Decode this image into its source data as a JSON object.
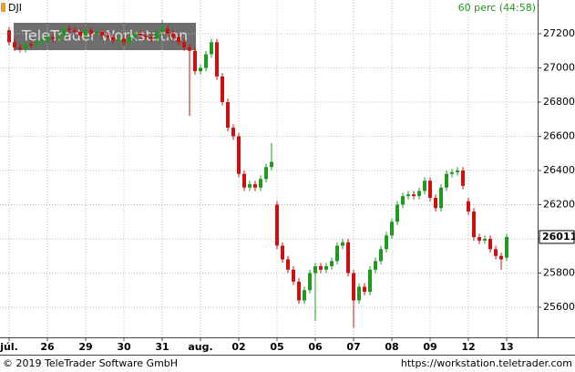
{
  "chart_data": {
    "type": "candlestick",
    "symbol": "DJI",
    "interval": "60 perc (44:58)",
    "watermark": "TeleTrader Workstation",
    "footer_left": "© 2019 TeleTrader Software GmbH",
    "footer_right": "https://workstation.teletrader.com",
    "categories": [
      "júl.",
      null,
      null,
      null,
      null,
      null,
      null,
      "26",
      null,
      null,
      null,
      null,
      null,
      null,
      "29",
      null,
      null,
      null,
      null,
      null,
      null,
      "30",
      null,
      null,
      null,
      null,
      null,
      null,
      "31",
      null,
      null,
      null,
      null,
      null,
      null,
      "aug.",
      null,
      null,
      null,
      null,
      null,
      null,
      "02",
      null,
      null,
      null,
      null,
      null,
      null,
      "05",
      null,
      null,
      null,
      null,
      null,
      null,
      "06",
      null,
      null,
      null,
      null,
      null,
      null,
      "07",
      null,
      null,
      null,
      null,
      null,
      null,
      "08",
      null,
      null,
      null,
      null,
      null,
      null,
      "09",
      null,
      null,
      null,
      null,
      null,
      null,
      "12",
      null,
      null,
      null,
      null,
      null,
      null,
      "13"
    ],
    "open": [
      27220,
      27150,
      27120,
      27110,
      27140,
      27130,
      27150,
      27160,
      27180,
      27170,
      27190,
      27230,
      27220,
      27210,
      27190,
      27220,
      27200,
      27210,
      27190,
      27180,
      27160,
      27170,
      27150,
      27180,
      27200,
      27190,
      27180,
      27170,
      27210,
      27230,
      27200,
      27180,
      27150,
      27120,
      27100,
      26980,
      27000,
      27080,
      27150,
      26950,
      26800,
      26650,
      26600,
      26380,
      26300,
      26320,
      26300,
      26350,
      26420,
      26200,
      25960,
      25880,
      25820,
      25750,
      25640,
      25700,
      25800,
      25840,
      25820,
      25840,
      25870,
      25960,
      25980,
      25800,
      25640,
      25720,
      25690,
      25820,
      25870,
      25940,
      26020,
      26100,
      26200,
      26250,
      26260,
      26250,
      26280,
      26340,
      26240,
      26180,
      26300,
      26380,
      26390,
      26400,
      26220,
      26160,
      26010,
      25990,
      26000,
      25940,
      25900,
      25890
    ],
    "high": [
      27240,
      27170,
      27140,
      27160,
      27160,
      27170,
      27180,
      27200,
      27200,
      27210,
      27250,
      27250,
      27240,
      27230,
      27240,
      27240,
      27230,
      27230,
      27210,
      27200,
      27190,
      27190,
      27200,
      27220,
      27220,
      27210,
      27200,
      27230,
      27280,
      27250,
      27220,
      27200,
      27170,
      27140,
      27120,
      27020,
      27100,
      27170,
      27170,
      26970,
      26820,
      26670,
      26620,
      26400,
      26340,
      26340,
      26370,
      26440,
      26560,
      26220,
      25980,
      25900,
      25840,
      25770,
      25720,
      25820,
      25860,
      25860,
      25860,
      25890,
      25980,
      26000,
      26000,
      25820,
      25740,
      25740,
      25840,
      25890,
      25960,
      26040,
      26120,
      26220,
      26270,
      26280,
      26280,
      26300,
      26360,
      26360,
      26260,
      26320,
      26400,
      26410,
      26420,
      26420,
      26240,
      26180,
      26030,
      26020,
      26020,
      25960,
      25920,
      26030
    ],
    "low": [
      27130,
      27100,
      27090,
      27090,
      27110,
      27110,
      27130,
      27140,
      27150,
      27150,
      27170,
      27200,
      27190,
      27170,
      27170,
      27180,
      27180,
      27170,
      27160,
      27140,
      27140,
      27130,
      27130,
      27160,
      27170,
      27160,
      27150,
      27150,
      27190,
      27180,
      27160,
      27130,
      27100,
      26720,
      26960,
      26960,
      26980,
      27060,
      26930,
      26780,
      26630,
      26580,
      26360,
      26280,
      26280,
      26280,
      26280,
      26330,
      26400,
      25940,
      25860,
      25800,
      25730,
      25620,
      25620,
      25680,
      25520,
      25800,
      25800,
      25820,
      25850,
      25940,
      25780,
      25480,
      25620,
      25670,
      25670,
      25800,
      25850,
      25920,
      26000,
      26080,
      26180,
      26230,
      26230,
      26230,
      26260,
      26220,
      26160,
      26160,
      26280,
      26360,
      26370,
      26290,
      26140,
      25990,
      25970,
      25970,
      25920,
      25880,
      25820,
      25870
    ],
    "close": [
      27150,
      27120,
      27110,
      27140,
      27130,
      27150,
      27160,
      27180,
      27170,
      27190,
      27230,
      27220,
      27210,
      27190,
      27220,
      27200,
      27210,
      27190,
      27180,
      27160,
      27170,
      27150,
      27180,
      27200,
      27190,
      27180,
      27170,
      27210,
      27230,
      27200,
      27180,
      27150,
      27120,
      27100,
      26980,
      27000,
      27080,
      27150,
      26950,
      26800,
      26650,
      26600,
      26380,
      26300,
      26320,
      26300,
      26350,
      26420,
      26450,
      25960,
      25880,
      25820,
      25750,
      25640,
      25700,
      25800,
      25840,
      25820,
      25840,
      25870,
      25960,
      25980,
      25800,
      25640,
      25720,
      25690,
      25820,
      25870,
      25940,
      26020,
      26100,
      26200,
      26250,
      26260,
      26250,
      26280,
      26340,
      26240,
      26180,
      26300,
      26380,
      26390,
      26400,
      26310,
      26160,
      26010,
      25990,
      26000,
      25940,
      25900,
      25880,
      26011
    ],
    "up_color": "#1f9a1f",
    "down_color": "#cc1010",
    "ylim": [
      25424,
      27397
    ],
    "yticks": [
      25600,
      25800,
      26000,
      26200,
      26400,
      26600,
      26800,
      27000,
      27200
    ],
    "grid": true
  }
}
